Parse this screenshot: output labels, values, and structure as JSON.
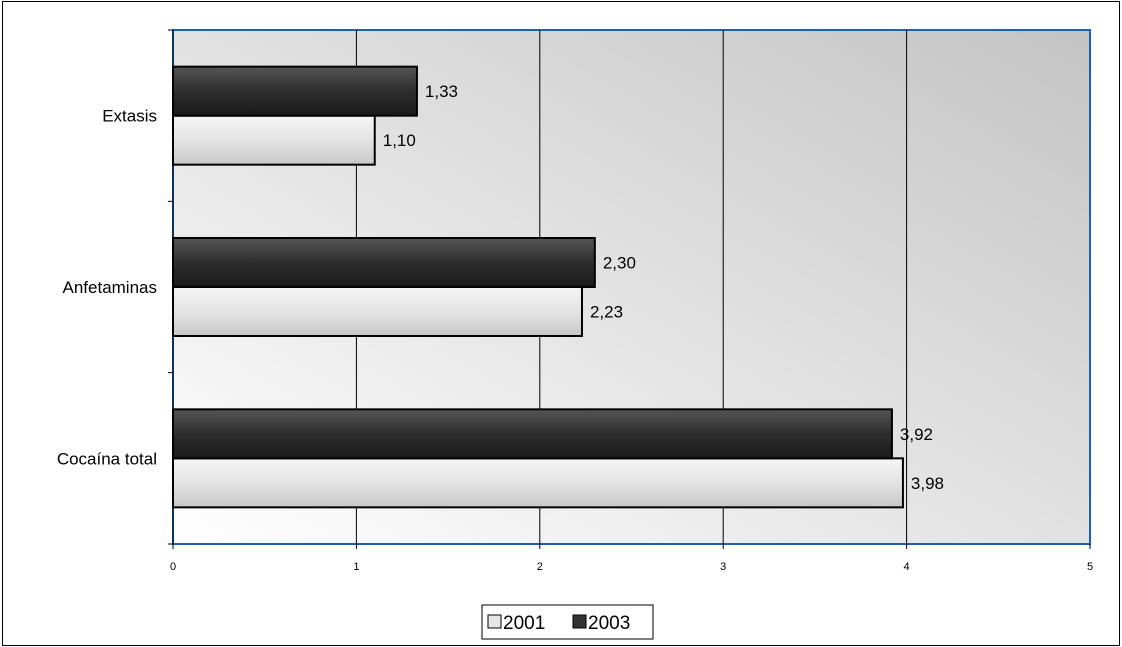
{
  "chart_data": {
    "type": "bar",
    "orientation": "horizontal",
    "categories": [
      "Extasis",
      "Anfetaminas",
      "Cocaína total"
    ],
    "series": [
      {
        "name": "2001",
        "values": [
          1.1,
          2.23,
          3.98
        ],
        "labels": [
          "1,10",
          "2,23",
          "3,98"
        ],
        "color": "#e6e6e6"
      },
      {
        "name": "2003",
        "values": [
          1.33,
          2.3,
          3.92
        ],
        "labels": [
          "1,33",
          "2,30",
          "3,92"
        ],
        "color": "#333333"
      }
    ],
    "x_ticks": [
      "0",
      "1",
      "2",
      "3",
      "4",
      "5"
    ],
    "xlim": [
      0,
      5
    ],
    "title": "",
    "xlabel": "",
    "ylabel": "",
    "grid": "vertical",
    "legend_position": "bottom",
    "plot_background": "gradient-gray",
    "plot_border_color": "#1f5fb0"
  }
}
